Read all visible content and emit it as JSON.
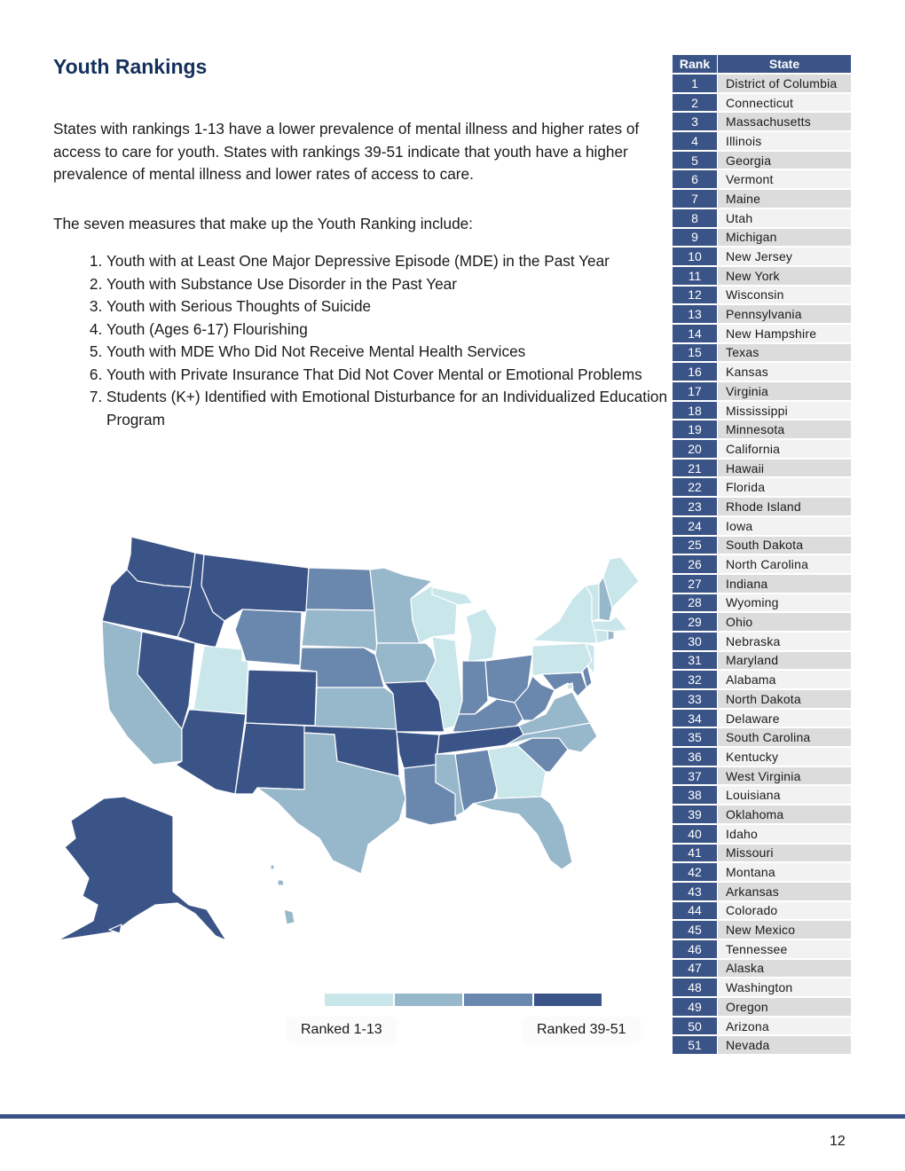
{
  "title": "Youth Rankings",
  "intro": "States with rankings 1-13 have a lower prevalence of mental illness and higher rates of access to care for youth. States with rankings 39-51 indicate that youth have a higher prevalence of mental illness and lower rates of access to care.",
  "measures_intro": "The seven measures that make up the Youth Ranking include:",
  "measures": [
    "Youth with at Least One Major Depressive Episode (MDE) in the Past Year",
    "Youth with Substance Use Disorder in the Past Year",
    "Youth with Serious Thoughts of Suicide",
    "Youth (Ages 6-17) Flourishing",
    "Youth with MDE Who Did Not Receive Mental Health Services",
    "Youth with Private Insurance That Did Not Cover Mental or Emotional Problems",
    "Students (K+) Identified with Emotional Disturbance for an Individualized Education Program"
  ],
  "legend": {
    "low_label": "Ranked 1-13",
    "high_label": "Ranked 39-51",
    "colors": [
      "#c9e6ea",
      "#97b7cb",
      "#6a87ad",
      "#3b5487"
    ]
  },
  "table": {
    "headers": [
      "Rank",
      "State"
    ],
    "rows": [
      [
        "1",
        "District of Columbia"
      ],
      [
        "2",
        "Connecticut"
      ],
      [
        "3",
        "Massachusetts"
      ],
      [
        "4",
        "Illinois"
      ],
      [
        "5",
        "Georgia"
      ],
      [
        "6",
        "Vermont"
      ],
      [
        "7",
        "Maine"
      ],
      [
        "8",
        "Utah"
      ],
      [
        "9",
        "Michigan"
      ],
      [
        "10",
        "New Jersey"
      ],
      [
        "11",
        "New York"
      ],
      [
        "12",
        "Wisconsin"
      ],
      [
        "13",
        "Pennsylvania"
      ],
      [
        "14",
        "New Hampshire"
      ],
      [
        "15",
        "Texas"
      ],
      [
        "16",
        "Kansas"
      ],
      [
        "17",
        "Virginia"
      ],
      [
        "18",
        "Mississippi"
      ],
      [
        "19",
        "Minnesota"
      ],
      [
        "20",
        "California"
      ],
      [
        "21",
        "Hawaii"
      ],
      [
        "22",
        "Florida"
      ],
      [
        "23",
        "Rhode Island"
      ],
      [
        "24",
        "Iowa"
      ],
      [
        "25",
        "South Dakota"
      ],
      [
        "26",
        "North Carolina"
      ],
      [
        "27",
        "Indiana"
      ],
      [
        "28",
        "Wyoming"
      ],
      [
        "29",
        "Ohio"
      ],
      [
        "30",
        "Nebraska"
      ],
      [
        "31",
        "Maryland"
      ],
      [
        "32",
        "Alabama"
      ],
      [
        "33",
        "North Dakota"
      ],
      [
        "34",
        "Delaware"
      ],
      [
        "35",
        "South Carolina"
      ],
      [
        "36",
        "Kentucky"
      ],
      [
        "37",
        "West Virginia"
      ],
      [
        "38",
        "Louisiana"
      ],
      [
        "39",
        "Oklahoma"
      ],
      [
        "40",
        "Idaho"
      ],
      [
        "41",
        "Missouri"
      ],
      [
        "42",
        "Montana"
      ],
      [
        "43",
        "Arkansas"
      ],
      [
        "44",
        "Colorado"
      ],
      [
        "45",
        "New Mexico"
      ],
      [
        "46",
        "Tennessee"
      ],
      [
        "47",
        "Alaska"
      ],
      [
        "48",
        "Washington"
      ],
      [
        "49",
        "Oregon"
      ],
      [
        "50",
        "Arizona"
      ],
      [
        "51",
        "Nevada"
      ]
    ]
  },
  "page_number": "12"
}
